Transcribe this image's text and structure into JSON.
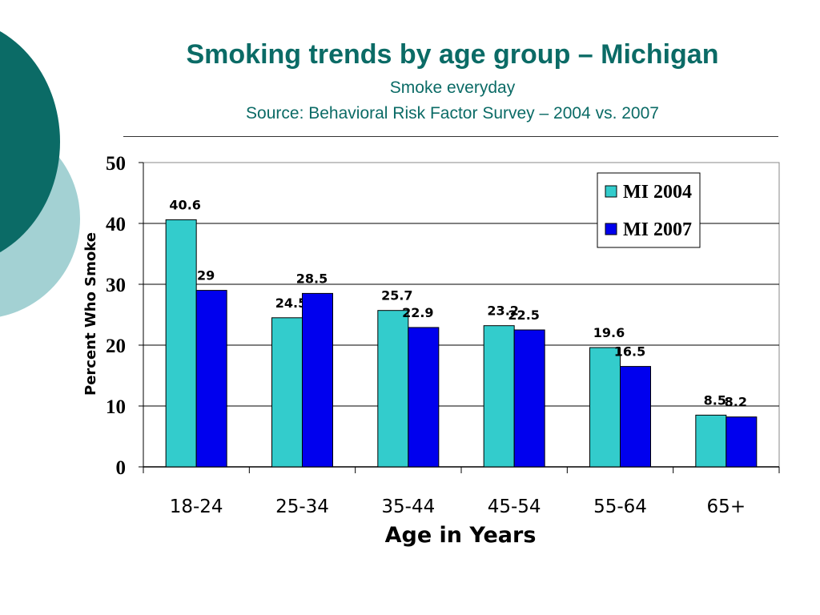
{
  "slide": {
    "title": "Smoking trends by age group – Michigan",
    "subtitle_1": "Smoke everyday",
    "subtitle_2": "Source: Behavioral Risk Factor Survey – 2004 vs. 2007"
  },
  "colors": {
    "title": "#0b6b66",
    "deco_dark": "#0b6b66",
    "deco_light": "#a3d1d3",
    "series_2004": "#33cccc",
    "series_2007": "#0000ee"
  },
  "chart_data": {
    "type": "bar",
    "xlabel": "Age in Years",
    "ylabel": "Percent Who Smoke",
    "ylim": [
      0,
      50
    ],
    "yticks": [
      0,
      10,
      20,
      30,
      40,
      50
    ],
    "grid": true,
    "legend_position": "top-right",
    "categories": [
      "18-24",
      "25-34",
      "35-44",
      "45-54",
      "55-64",
      "65+"
    ],
    "series": [
      {
        "name": "MI 2004",
        "color": "#33cccc",
        "values": [
          40.6,
          24.5,
          25.7,
          23.2,
          19.6,
          8.5
        ],
        "labels": [
          "40.6",
          "24.5",
          "25.7",
          "23.2",
          "19.6",
          "8.5"
        ]
      },
      {
        "name": "MI 2007",
        "color": "#0000ee",
        "values": [
          29,
          28.5,
          22.9,
          22.5,
          16.5,
          8.2
        ],
        "labels": [
          "29",
          "28.5",
          "22.9",
          "22.5",
          "16.5",
          "8.2"
        ]
      }
    ]
  }
}
